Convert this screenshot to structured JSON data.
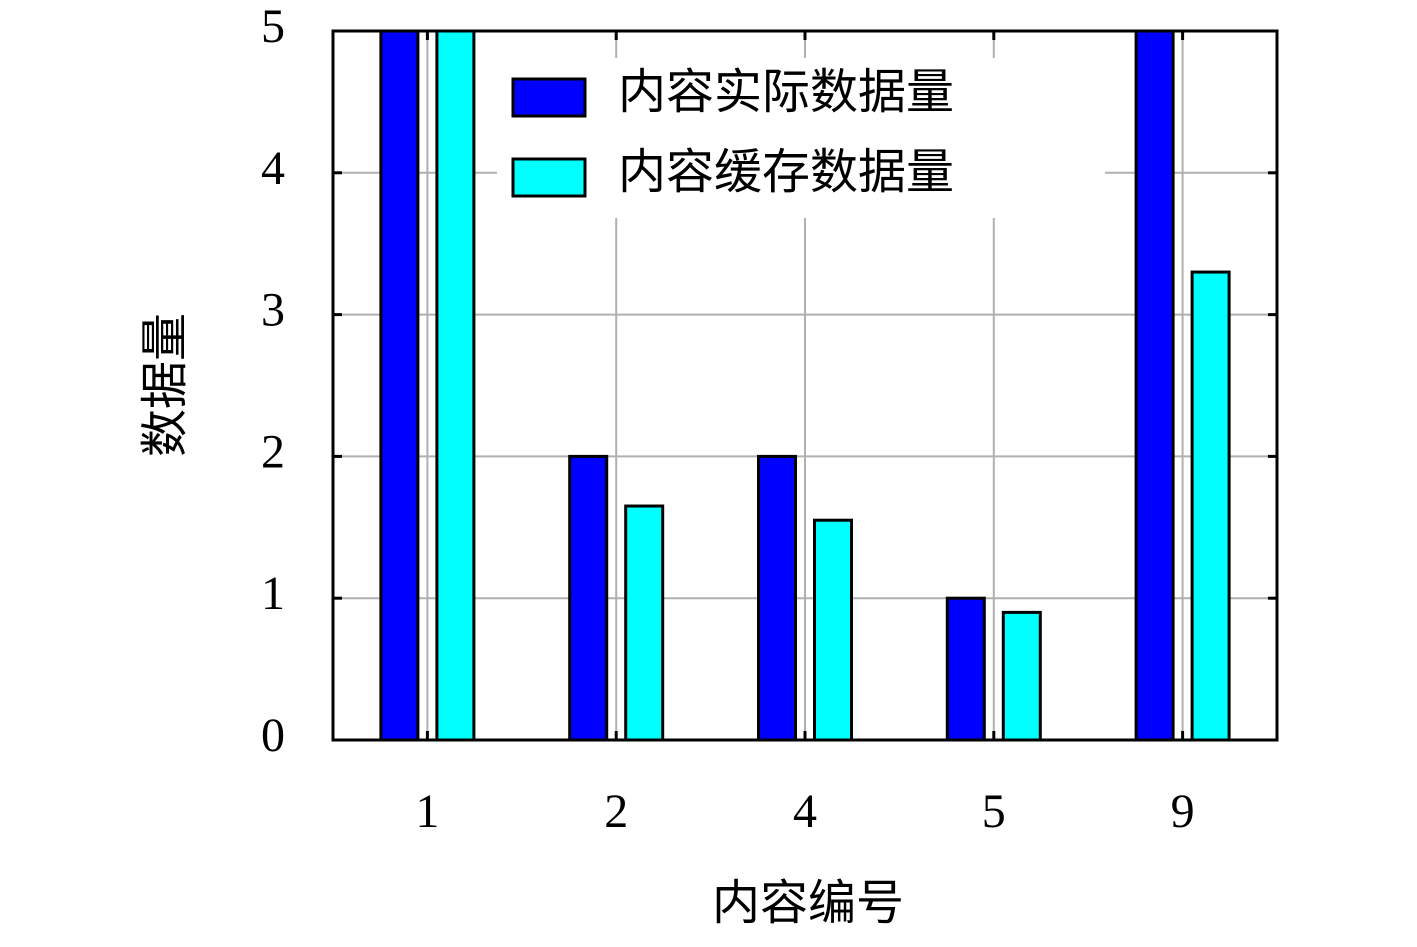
{
  "chart_data": {
    "type": "bar",
    "xlabel": "内容编号",
    "ylabel": "数据量",
    "categories": [
      "1",
      "2",
      "4",
      "5",
      "9"
    ],
    "series": [
      {
        "name": "内容实际数据量",
        "color": "#0000ff",
        "values": [
          5,
          2,
          2,
          1,
          5
        ]
      },
      {
        "name": "内容缓存数据量",
        "color": "#00ffff",
        "values": [
          5,
          1.65,
          1.55,
          0.9,
          3.3
        ]
      }
    ],
    "ylim": [
      0,
      5
    ],
    "yticks": [
      0,
      1,
      2,
      3,
      4,
      5
    ],
    "grid": true,
    "legend": "top"
  }
}
